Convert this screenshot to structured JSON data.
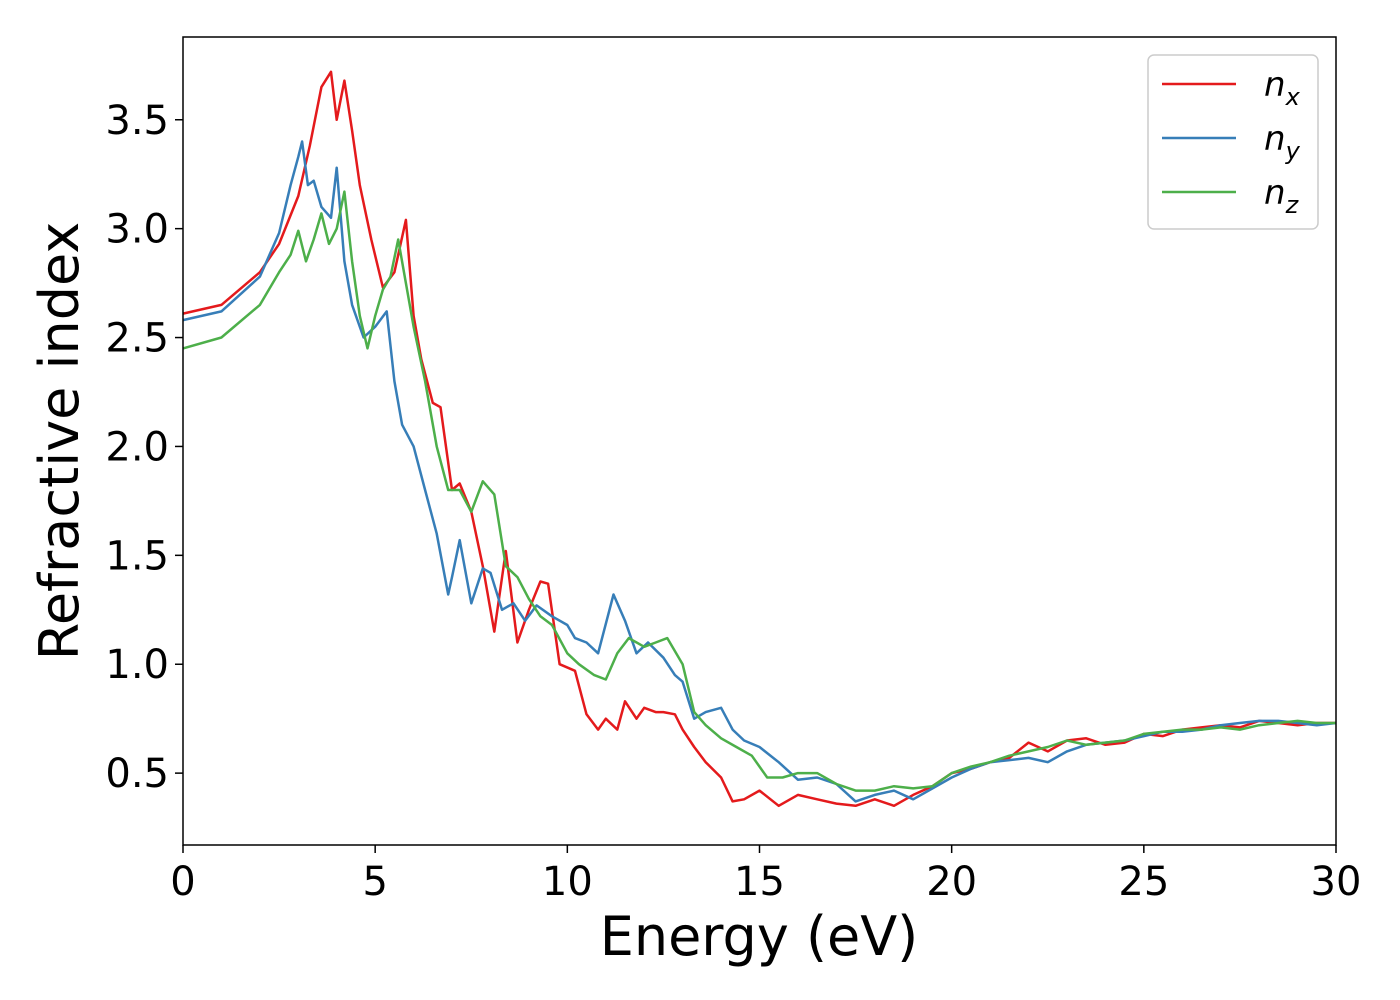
{
  "chart_data": {
    "type": "line",
    "xlabel": "Energy (eV)",
    "ylabel": "Refractive index",
    "xlim": [
      0,
      30
    ],
    "ylim": [
      0.17,
      3.88
    ],
    "x_ticks": [
      0,
      5,
      10,
      15,
      20,
      25,
      30
    ],
    "y_ticks": [
      0.5,
      1.0,
      1.5,
      2.0,
      2.5,
      3.0,
      3.5
    ],
    "grid": false,
    "legend_position": "top-right",
    "series": [
      {
        "name": "n_x",
        "legend_base": "n",
        "legend_sub": "x",
        "color": "#e41a1c",
        "x": [
          0,
          1,
          2,
          2.5,
          3,
          3.3,
          3.6,
          3.85,
          4.0,
          4.2,
          4.4,
          4.6,
          4.9,
          5.2,
          5.5,
          5.8,
          6.0,
          6.2,
          6.5,
          6.7,
          7.0,
          7.2,
          7.5,
          7.8,
          8.1,
          8.4,
          8.7,
          9.0,
          9.3,
          9.5,
          9.8,
          10.2,
          10.5,
          10.8,
          11.0,
          11.3,
          11.5,
          11.8,
          12.0,
          12.3,
          12.5,
          12.8,
          13.0,
          13.3,
          13.6,
          14.0,
          14.3,
          14.6,
          15.0,
          15.5,
          16.0,
          16.5,
          17.0,
          17.5,
          18.0,
          18.5,
          19.0,
          19.5,
          20.0,
          20.5,
          21.0,
          21.5,
          22.0,
          22.5,
          23.0,
          23.5,
          24.0,
          24.5,
          25.0,
          25.5,
          26.0,
          26.5,
          27.0,
          27.5,
          28.0,
          28.5,
          29.0,
          29.5,
          30.0
        ],
        "y": [
          2.61,
          2.65,
          2.8,
          2.93,
          3.15,
          3.38,
          3.65,
          3.72,
          3.5,
          3.68,
          3.45,
          3.2,
          2.95,
          2.73,
          2.8,
          3.04,
          2.6,
          2.4,
          2.2,
          2.18,
          1.8,
          1.83,
          1.7,
          1.45,
          1.15,
          1.52,
          1.1,
          1.25,
          1.38,
          1.37,
          1.0,
          0.97,
          0.77,
          0.7,
          0.75,
          0.7,
          0.83,
          0.75,
          0.8,
          0.78,
          0.78,
          0.77,
          0.7,
          0.62,
          0.55,
          0.48,
          0.37,
          0.38,
          0.42,
          0.35,
          0.4,
          0.38,
          0.36,
          0.35,
          0.38,
          0.35,
          0.4,
          0.44,
          0.5,
          0.52,
          0.55,
          0.57,
          0.64,
          0.6,
          0.65,
          0.66,
          0.63,
          0.64,
          0.68,
          0.67,
          0.7,
          0.71,
          0.72,
          0.71,
          0.74,
          0.73,
          0.72,
          0.73,
          0.73
        ]
      },
      {
        "name": "n_y",
        "legend_base": "n",
        "legend_sub": "y",
        "color": "#377eb8",
        "x": [
          0,
          1,
          2,
          2.5,
          2.8,
          3.0,
          3.1,
          3.25,
          3.4,
          3.6,
          3.85,
          4.0,
          4.2,
          4.4,
          4.7,
          5.0,
          5.3,
          5.5,
          5.7,
          6.0,
          6.3,
          6.6,
          6.9,
          7.0,
          7.2,
          7.5,
          7.8,
          8.0,
          8.3,
          8.6,
          8.9,
          9.2,
          9.6,
          10.0,
          10.2,
          10.5,
          10.8,
          11.2,
          11.5,
          11.8,
          12.1,
          12.5,
          12.8,
          13.0,
          13.3,
          13.6,
          14.0,
          14.3,
          14.6,
          15.0,
          15.5,
          16.0,
          16.5,
          17.0,
          17.5,
          18.0,
          18.5,
          19.0,
          19.5,
          20.0,
          20.5,
          21.0,
          21.5,
          22.0,
          22.5,
          23.0,
          23.5,
          24.0,
          24.5,
          25.0,
          25.5,
          26.0,
          26.5,
          27.0,
          27.5,
          28.0,
          28.5,
          29.0,
          29.5,
          30.0
        ],
        "y": [
          2.58,
          2.62,
          2.78,
          2.98,
          3.2,
          3.33,
          3.4,
          3.2,
          3.22,
          3.1,
          3.05,
          3.28,
          2.85,
          2.65,
          2.5,
          2.55,
          2.62,
          2.3,
          2.1,
          2.0,
          1.8,
          1.6,
          1.32,
          1.4,
          1.57,
          1.28,
          1.44,
          1.42,
          1.25,
          1.28,
          1.2,
          1.27,
          1.22,
          1.18,
          1.12,
          1.1,
          1.05,
          1.32,
          1.2,
          1.05,
          1.1,
          1.03,
          0.95,
          0.92,
          0.75,
          0.78,
          0.8,
          0.7,
          0.65,
          0.62,
          0.55,
          0.47,
          0.48,
          0.45,
          0.37,
          0.4,
          0.42,
          0.38,
          0.43,
          0.48,
          0.52,
          0.55,
          0.56,
          0.57,
          0.55,
          0.6,
          0.63,
          0.64,
          0.65,
          0.67,
          0.69,
          0.69,
          0.7,
          0.72,
          0.73,
          0.74,
          0.74,
          0.73,
          0.72,
          0.73
        ]
      },
      {
        "name": "n_z",
        "legend_base": "n",
        "legend_sub": "z",
        "color": "#4daf4a",
        "x": [
          0,
          1,
          2,
          2.5,
          2.8,
          3.0,
          3.2,
          3.4,
          3.6,
          3.8,
          4.0,
          4.2,
          4.4,
          4.6,
          4.8,
          5.0,
          5.2,
          5.4,
          5.6,
          5.8,
          6.0,
          6.3,
          6.6,
          6.9,
          7.2,
          7.5,
          7.8,
          8.1,
          8.4,
          8.7,
          9.0,
          9.3,
          9.6,
          10.0,
          10.3,
          10.7,
          11.0,
          11.3,
          11.6,
          12.0,
          12.3,
          12.6,
          13.0,
          13.3,
          13.6,
          14.0,
          14.4,
          14.8,
          15.2,
          15.6,
          16.0,
          16.5,
          17.0,
          17.5,
          18.0,
          18.5,
          19.0,
          19.5,
          20.0,
          20.5,
          21.0,
          21.5,
          22.0,
          22.5,
          23.0,
          23.5,
          24.0,
          24.5,
          25.0,
          25.5,
          26.0,
          26.5,
          27.0,
          27.5,
          28.0,
          28.5,
          29.0,
          29.5,
          30.0
        ],
        "y": [
          2.45,
          2.5,
          2.65,
          2.8,
          2.88,
          2.99,
          2.85,
          2.95,
          3.07,
          2.93,
          3.0,
          3.17,
          2.85,
          2.6,
          2.45,
          2.6,
          2.72,
          2.78,
          2.95,
          2.75,
          2.55,
          2.3,
          2.0,
          1.8,
          1.8,
          1.7,
          1.84,
          1.78,
          1.45,
          1.4,
          1.3,
          1.22,
          1.18,
          1.05,
          1.0,
          0.95,
          0.93,
          1.05,
          1.12,
          1.08,
          1.1,
          1.12,
          1.0,
          0.78,
          0.72,
          0.66,
          0.62,
          0.58,
          0.48,
          0.48,
          0.5,
          0.5,
          0.45,
          0.42,
          0.42,
          0.44,
          0.43,
          0.44,
          0.5,
          0.53,
          0.55,
          0.58,
          0.6,
          0.62,
          0.65,
          0.63,
          0.64,
          0.65,
          0.68,
          0.69,
          0.7,
          0.7,
          0.71,
          0.7,
          0.72,
          0.73,
          0.74,
          0.73,
          0.73
        ]
      }
    ]
  }
}
